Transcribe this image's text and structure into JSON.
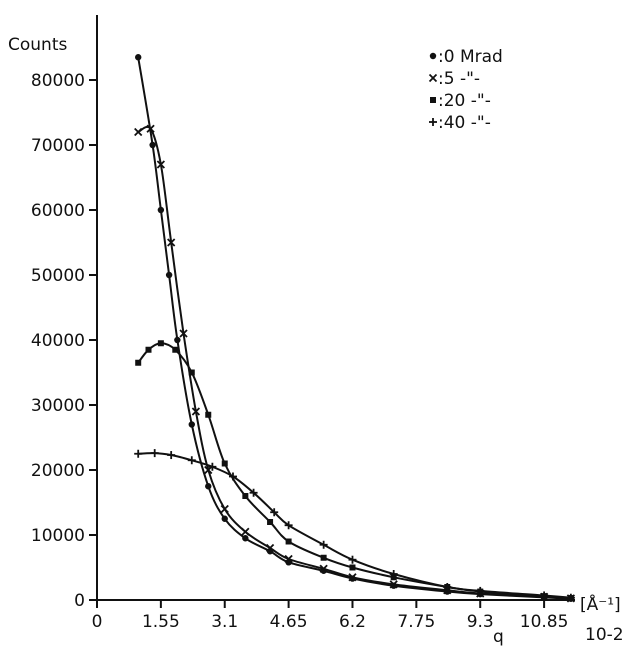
{
  "chart_data": {
    "type": "line",
    "ylabel": "Counts",
    "xlabel": "q",
    "x_unit": "[Å⁻¹]",
    "x_multiplier": "10-2",
    "xlim": [
      0,
      11.6
    ],
    "ylim": [
      0,
      90000
    ],
    "x_ticks": [
      "0",
      "1.55",
      "3.1",
      "4.65",
      "6.2",
      "7.75",
      "9.3",
      "10.85"
    ],
    "y_ticks": [
      "0",
      "10000",
      "20000",
      "30000",
      "40000",
      "50000",
      "60000",
      "70000",
      "80000"
    ],
    "x_tick_values": [
      0,
      1.55,
      3.1,
      4.65,
      6.2,
      7.75,
      9.3,
      10.85
    ],
    "y_tick_values": [
      0,
      10000,
      20000,
      30000,
      40000,
      50000,
      60000,
      70000,
      80000
    ],
    "grid": false,
    "legend_position": "top-right",
    "series": [
      {
        "name": ":0 Mrad",
        "marker": "dot",
        "x": [
          1.0,
          1.35,
          1.55,
          1.75,
          1.95,
          2.3,
          2.7,
          3.1,
          3.6,
          4.2,
          4.65,
          5.5,
          6.2,
          7.2,
          8.5,
          9.3,
          10.85,
          11.5
        ],
        "y": [
          83500,
          70000,
          60000,
          50000,
          40000,
          27000,
          17500,
          12500,
          9500,
          7500,
          5800,
          4500,
          3300,
          2200,
          1300,
          900,
          400,
          200
        ]
      },
      {
        "name": ":5 -\"-",
        "marker": "x",
        "x": [
          1.0,
          1.3,
          1.55,
          1.8,
          2.1,
          2.4,
          2.7,
          3.1,
          3.6,
          4.2,
          4.65,
          5.5,
          6.2,
          7.2,
          8.5,
          9.3,
          10.85,
          11.5
        ],
        "y": [
          72000,
          72500,
          67000,
          55000,
          41000,
          29000,
          20000,
          14000,
          10500,
          8000,
          6300,
          4800,
          3500,
          2400,
          1500,
          1000,
          500,
          250
        ]
      },
      {
        "name": ":20 -\"-",
        "marker": "square",
        "x": [
          1.0,
          1.25,
          1.55,
          1.9,
          2.3,
          2.7,
          3.1,
          3.6,
          4.2,
          4.65,
          5.5,
          6.2,
          7.2,
          8.5,
          9.3,
          10.85,
          11.5
        ],
        "y": [
          36500,
          38500,
          39500,
          38500,
          35000,
          28500,
          21000,
          16000,
          12000,
          9000,
          6500,
          5000,
          3500,
          2000,
          1300,
          600,
          300
        ]
      },
      {
        "name": ":40 -\"-",
        "marker": "plus",
        "x": [
          1.0,
          1.4,
          1.8,
          2.3,
          2.8,
          3.3,
          3.8,
          4.3,
          4.65,
          5.5,
          6.2,
          7.2,
          8.5,
          9.3,
          10.85,
          11.5
        ],
        "y": [
          22500,
          22600,
          22300,
          21500,
          20500,
          19000,
          16500,
          13500,
          11500,
          8500,
          6200,
          4000,
          2000,
          1400,
          700,
          350
        ]
      }
    ]
  }
}
